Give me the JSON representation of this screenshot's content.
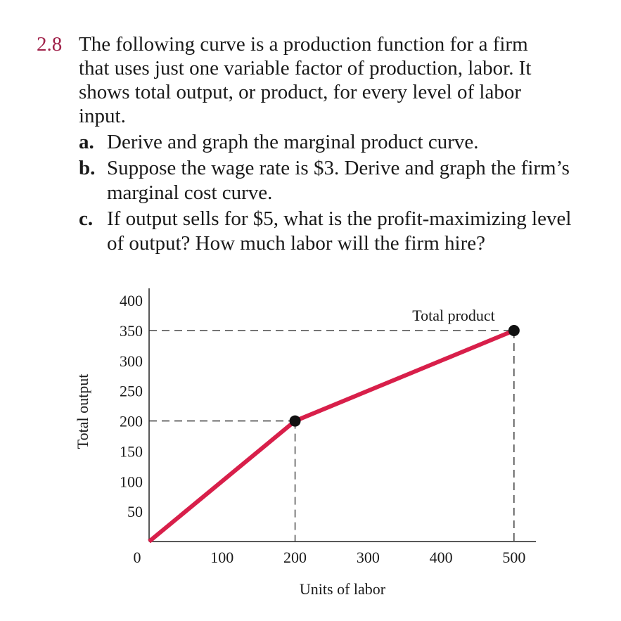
{
  "problem": {
    "number": "2.8",
    "lines": [
      "The following curve is a production function for a firm",
      "that uses just one variable factor of production, labor. It",
      "shows total output, or product, for every level of labor",
      "input."
    ],
    "parts": [
      {
        "label": "a.",
        "lines": [
          "Derive and graph the marginal product curve."
        ]
      },
      {
        "label": "b.",
        "lines": [
          "Suppose the wage rate is $3. Derive and graph the firm’s",
          "marginal cost curve."
        ]
      },
      {
        "label": "c.",
        "lines": [
          "If output sells for $5, what is the profit-maximizing level",
          "of output? How much labor will the firm hire?"
        ]
      }
    ]
  },
  "chart_data": {
    "type": "line",
    "x_label": "Units of labor",
    "y_label": "Total output",
    "annotation": "Total product",
    "x": [
      0,
      200,
      500
    ],
    "series": [
      {
        "name": "Total product",
        "color": "#d81f4a",
        "values": [
          0,
          200,
          350
        ]
      }
    ],
    "xlim": [
      0,
      530
    ],
    "ylim": [
      0,
      420
    ],
    "xticks": [
      0,
      100,
      200,
      300,
      400,
      500
    ],
    "yticks": [
      50,
      100,
      150,
      200,
      250,
      300,
      350,
      400
    ]
  }
}
